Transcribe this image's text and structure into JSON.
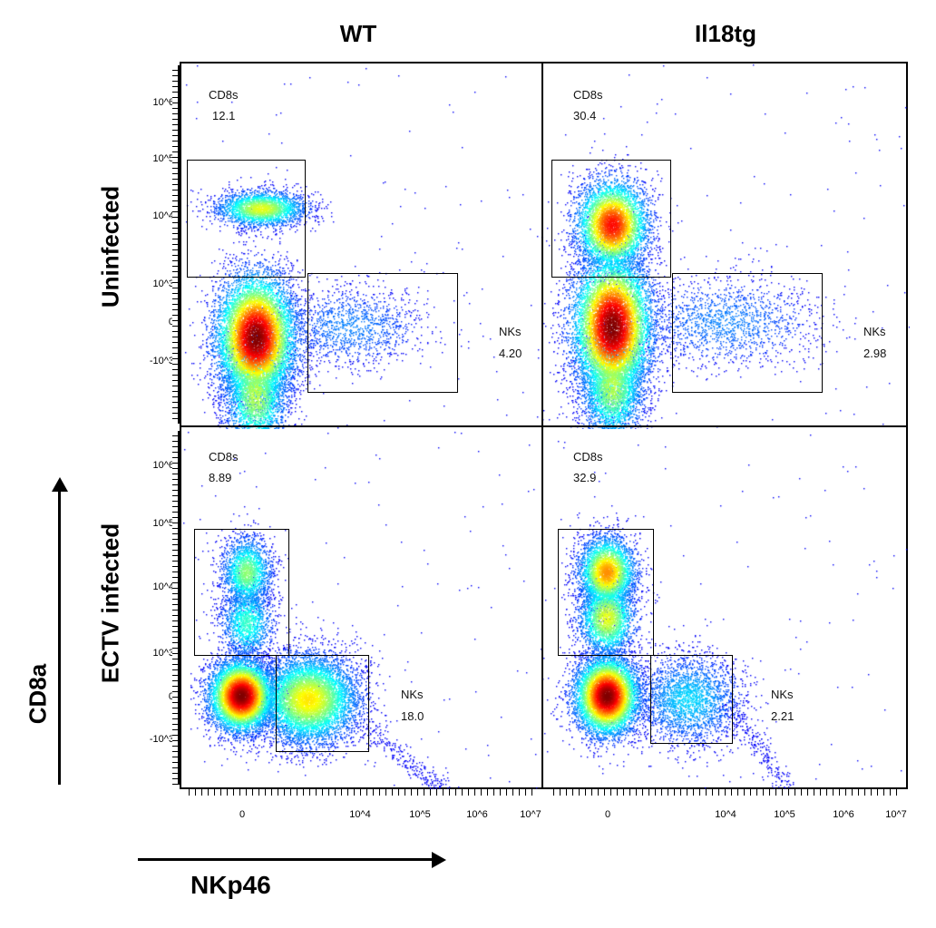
{
  "columns": [
    "WT",
    "Il18tg"
  ],
  "rows": [
    "Uninfected",
    "ECTV infected"
  ],
  "axes": {
    "xlabel": "NKp46",
    "ylabel": "CD8a",
    "x_ticks": [
      "0",
      "10^4",
      "10^5",
      "10^6",
      "10^7"
    ],
    "y_ticks": [
      "10^6",
      "10^5",
      "10^4",
      "10^3",
      "0",
      "-10^3"
    ]
  },
  "chart_data": {
    "type": "scatter",
    "title": "",
    "xlabel": "NKp46",
    "ylabel": "CD8a",
    "x_scale": "biexponential",
    "y_scale": "biexponential",
    "panels": [
      {
        "column": "WT",
        "row": "Uninfected",
        "gates": [
          {
            "name": "CD8s",
            "percent": "12.1"
          },
          {
            "name": "NKs",
            "percent": "4.20"
          }
        ]
      },
      {
        "column": "Il18tg",
        "row": "Uninfected",
        "gates": [
          {
            "name": "CD8s",
            "percent": "30.4"
          },
          {
            "name": "NKs",
            "percent": "2.98"
          }
        ]
      },
      {
        "column": "WT",
        "row": "ECTV infected",
        "gates": [
          {
            "name": "CD8s",
            "percent": "8.89"
          },
          {
            "name": "NKs",
            "percent": "18.0"
          }
        ]
      },
      {
        "column": "Il18tg",
        "row": "ECTV infected",
        "gates": [
          {
            "name": "CD8s",
            "percent": "32.9"
          },
          {
            "name": "NKs",
            "percent": "2.21"
          }
        ]
      }
    ]
  }
}
